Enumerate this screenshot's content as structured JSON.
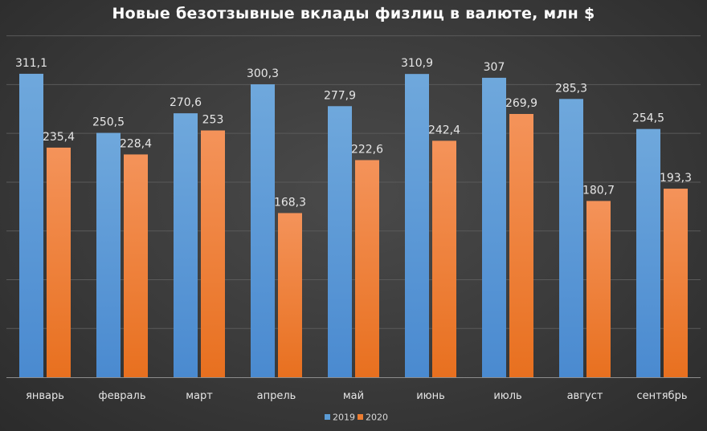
{
  "chart_data": {
    "type": "bar",
    "title": "Новые безотзывные вклады физлиц в валюте, млн $",
    "categories": [
      "январь",
      "февраль",
      "март",
      "апрель",
      "май",
      "июнь",
      "июль",
      "август",
      "сентябрь"
    ],
    "series": [
      {
        "name": "2019",
        "values": [
          311.1,
          250.5,
          270.6,
          300.3,
          277.9,
          310.9,
          307,
          285.3,
          254.5
        ],
        "labels": [
          "311,1",
          "250,5",
          "270,6",
          "300,3",
          "277,9",
          "310,9",
          "307",
          "285,3",
          "254,5"
        ],
        "color": "#5b9bd5"
      },
      {
        "name": "2020",
        "values": [
          235.4,
          228.4,
          253,
          168.3,
          222.6,
          242.4,
          269.9,
          180.7,
          193.3
        ],
        "labels": [
          "235,4",
          "228,4",
          "253",
          "168,3",
          "222,6",
          "242,4",
          "269,9",
          "180,7",
          "193,3"
        ],
        "color": "#ed7d31"
      }
    ],
    "ylim": [
      0,
      350
    ],
    "grid": true,
    "legend_position": "bottom"
  }
}
